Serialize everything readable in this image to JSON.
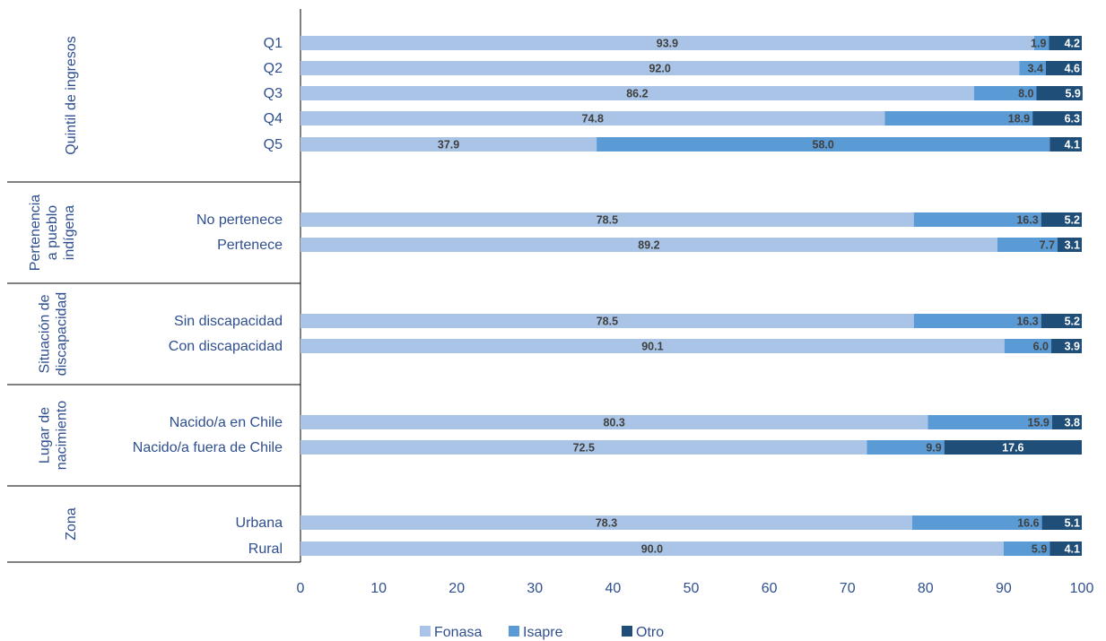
{
  "chart_data": {
    "type": "bar",
    "orientation": "horizontal",
    "stacked": true,
    "xlim": [
      0,
      100
    ],
    "x_ticks": [
      0,
      10,
      20,
      30,
      40,
      50,
      60,
      70,
      80,
      90,
      100
    ],
    "grid": false,
    "legend_position": "bottom",
    "series": [
      {
        "name": "Fonasa",
        "color": "#a9c4e6"
      },
      {
        "name": "Isapre",
        "color": "#5b9bd5"
      },
      {
        "name": "Otro",
        "color": "#1f4e79"
      }
    ],
    "groups": [
      {
        "label": "Quintil de ingresos",
        "rows": [
          {
            "category": "Q1",
            "values": [
              93.9,
              1.9,
              4.2
            ]
          },
          {
            "category": "Q2",
            "values": [
              92.0,
              3.4,
              4.6
            ]
          },
          {
            "category": "Q3",
            "values": [
              86.2,
              8.0,
              5.9
            ]
          },
          {
            "category": "Q4",
            "values": [
              74.8,
              18.9,
              6.3
            ]
          },
          {
            "category": "Q5",
            "values": [
              37.9,
              58.0,
              4.1
            ]
          }
        ]
      },
      {
        "label": "Pertenencia a pueblo indígena",
        "rows": [
          {
            "category": "No pertenece",
            "values": [
              78.5,
              16.3,
              5.2
            ]
          },
          {
            "category": "Pertenece",
            "values": [
              89.2,
              7.7,
              3.1
            ]
          }
        ]
      },
      {
        "label": "Situación de discapacidad",
        "rows": [
          {
            "category": "Sin discapacidad",
            "values": [
              78.5,
              16.3,
              5.2
            ]
          },
          {
            "category": "Con discapacidad",
            "values": [
              90.1,
              6.0,
              3.9
            ]
          }
        ]
      },
      {
        "label": "Lugar de nacimiento",
        "rows": [
          {
            "category": "Nacido/a en Chile",
            "values": [
              80.3,
              15.9,
              3.8
            ]
          },
          {
            "category": "Nacido/a fuera de Chile",
            "values": [
              72.5,
              9.9,
              17.6
            ]
          }
        ]
      },
      {
        "label": "Zona",
        "rows": [
          {
            "category": "Urbana",
            "values": [
              78.3,
              16.6,
              5.1
            ]
          },
          {
            "category": "Rural",
            "values": [
              90.0,
              5.9,
              4.1
            ]
          }
        ]
      }
    ]
  }
}
